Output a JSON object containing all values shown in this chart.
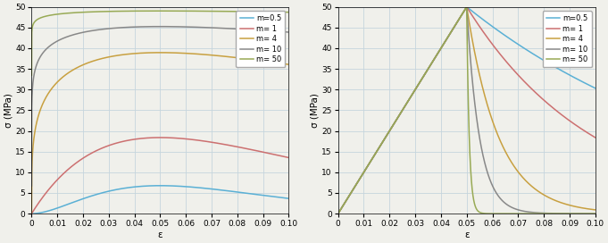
{
  "m_values": [
    0.5,
    1,
    4,
    10,
    50
  ],
  "colors": [
    "#5ab0d5",
    "#cc7070",
    "#c8a040",
    "#888888",
    "#98aa55"
  ],
  "labels": [
    "m=0.5",
    "m= 1",
    "m= 4",
    "m= 10",
    "m= 50"
  ],
  "eps_0": 0.05,
  "sigma_0": 50.0,
  "eps_max": 0.1,
  "n_points": 3000,
  "ylim": [
    0,
    50
  ],
  "xlim": [
    0,
    0.1
  ],
  "xticks": [
    0,
    0.01,
    0.02,
    0.03,
    0.04,
    0.05,
    0.06,
    0.07,
    0.08,
    0.09,
    0.1
  ],
  "yticks": [
    0,
    5,
    10,
    15,
    20,
    25,
    30,
    35,
    40,
    45,
    50
  ],
  "xlabel": "ε",
  "ylabel": "σ (MPa)",
  "grid_color": "#c5d5dd",
  "bg_color": "#f0f0eb",
  "legend_fontsize": 6.0,
  "tick_fontsize": 6.5,
  "label_fontsize": 7.5,
  "linewidth": 1.1
}
